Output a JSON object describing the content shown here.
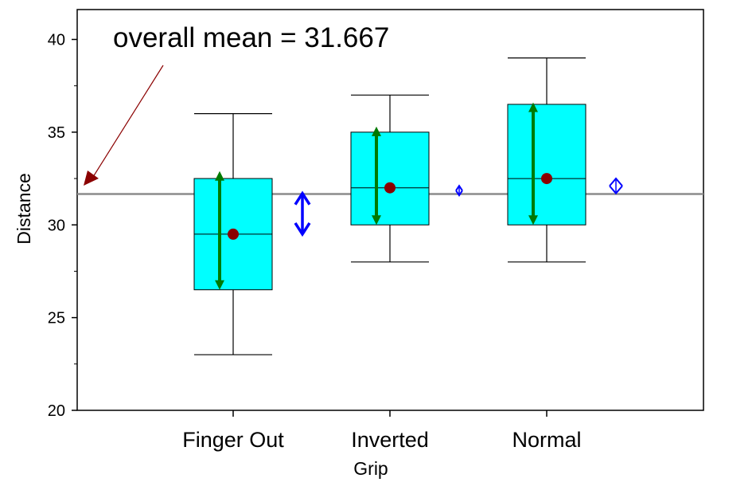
{
  "chart_data": {
    "type": "box",
    "title": "",
    "xlabel": "Grip",
    "ylabel": "Distance",
    "ylim": [
      20,
      41.5
    ],
    "yticks": [
      20,
      25,
      30,
      35,
      40
    ],
    "categories": [
      "Finger Out",
      "Inverted",
      "Normal"
    ],
    "boxes": [
      {
        "category": "Finger Out",
        "min": 23,
        "q1": 26.5,
        "median": 29.5,
        "q3": 32.5,
        "max": 36,
        "mean": 29.5,
        "sd_low": 26.5,
        "sd_high": 32.9,
        "dev_low": 29.5,
        "dev_high": 31.7
      },
      {
        "category": "Inverted",
        "min": 28,
        "q1": 30,
        "median": 32,
        "q3": 35,
        "max": 37,
        "mean": 32,
        "sd_low": 30,
        "sd_high": 35.3,
        "dev_low": 31.7,
        "dev_high": 32.0
      },
      {
        "category": "Normal",
        "min": 28,
        "q1": 30,
        "median": 32.5,
        "q3": 36.5,
        "max": 39,
        "mean": 32.5,
        "sd_low": 30,
        "sd_high": 36.6,
        "dev_low": 31.7,
        "dev_high": 32.5
      }
    ],
    "overall_mean": 31.667,
    "annotation": "overall mean = 31.667",
    "colors": {
      "box_fill": "#00ffff",
      "sd_arrow": "#007a00",
      "mean_point": "#8b0000",
      "effect_arrow": "#0000ff",
      "overall_line": "#8c8c8c",
      "annotation_arrow": "#8b0000"
    }
  }
}
